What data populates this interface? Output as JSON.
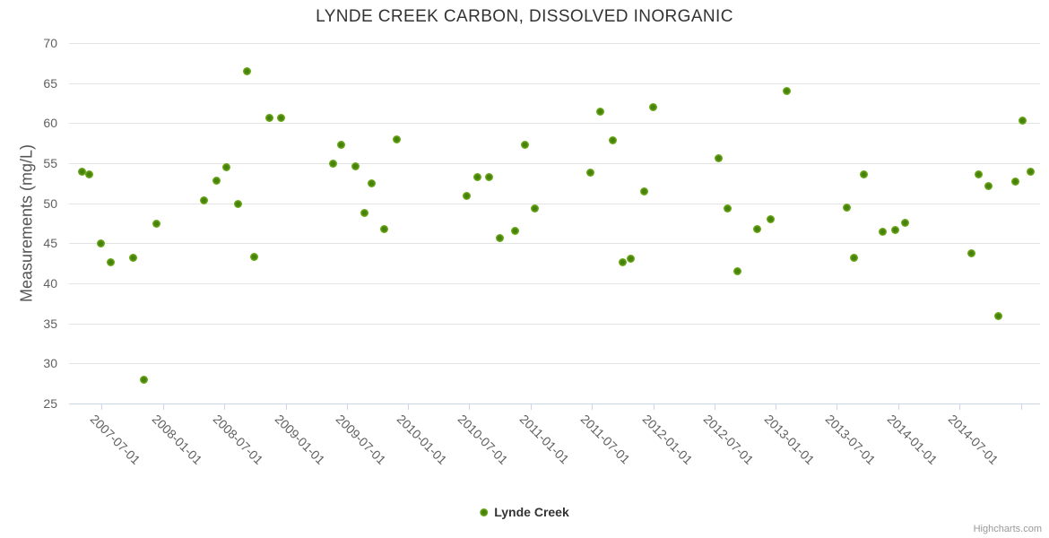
{
  "chart": {
    "title": "LYNDE CREEK CARBON, DISSOLVED INORGANIC",
    "y_axis": {
      "title": "Measurements (mg/L)",
      "min": 25,
      "max": 70,
      "tick_interval": 5,
      "tick_labels": [
        "25",
        "30",
        "35",
        "40",
        "45",
        "50",
        "55",
        "60",
        "65",
        "70"
      ]
    },
    "x_axis": {
      "tick_labels": [
        "2007-07-01",
        "2008-01-01",
        "2008-07-01",
        "2009-01-01",
        "2009-07-01",
        "2010-01-01",
        "2010-07-01",
        "2011-01-01",
        "2011-07-01",
        "2012-01-01",
        "2012-07-01",
        "2013-01-01",
        "2013-07-01",
        "2014-01-01",
        "2014-07-01"
      ],
      "extra_unlabeled_tick": "2015-01-01"
    },
    "legend": {
      "label": "Lynde Creek"
    },
    "credits": "Highcharts.com",
    "colors": {
      "marker_core": "#47800a",
      "marker_mid": "#69a818",
      "marker_edge": "#8cc03f",
      "gridline": "#e3e3e3",
      "axis": "#ccd6eb",
      "label": "#606060",
      "title": "#333333"
    }
  },
  "chart_data": {
    "type": "scatter",
    "title": "LYNDE CREEK CARBON, DISSOLVED INORGANIC",
    "xlabel": "",
    "ylabel": "Measurements (mg/L)",
    "ylim": [
      25,
      70
    ],
    "grid": "horizontal-only",
    "legend_position": "bottom-center",
    "series": [
      {
        "name": "Lynde Creek",
        "points": [
          [
            "2007-05-05",
            53.9
          ],
          [
            "2007-05-27",
            53.6
          ],
          [
            "2007-06-30",
            45.0
          ],
          [
            "2007-07-29",
            42.6
          ],
          [
            "2007-10-03",
            43.2
          ],
          [
            "2007-11-04",
            28.0
          ],
          [
            "2007-12-12",
            47.4
          ],
          [
            "2008-05-02",
            50.3
          ],
          [
            "2008-06-09",
            52.8
          ],
          [
            "2008-07-08",
            54.5
          ],
          [
            "2008-08-12",
            49.9
          ],
          [
            "2008-09-06",
            66.5
          ],
          [
            "2008-09-30",
            43.3
          ],
          [
            "2008-11-14",
            60.6
          ],
          [
            "2008-12-19",
            60.6
          ],
          [
            "2009-05-23",
            54.9
          ],
          [
            "2009-06-16",
            57.3
          ],
          [
            "2009-07-28",
            54.6
          ],
          [
            "2009-08-24",
            48.8
          ],
          [
            "2009-09-15",
            52.5
          ],
          [
            "2009-10-21",
            46.8
          ],
          [
            "2009-11-28",
            58.0
          ],
          [
            "2010-06-24",
            50.9
          ],
          [
            "2010-07-27",
            53.3
          ],
          [
            "2010-08-30",
            53.3
          ],
          [
            "2010-10-01",
            45.6
          ],
          [
            "2010-11-15",
            46.5
          ],
          [
            "2010-12-15",
            57.3
          ],
          [
            "2011-01-12",
            49.4
          ],
          [
            "2011-06-27",
            53.8
          ],
          [
            "2011-07-28",
            61.4
          ],
          [
            "2011-09-02",
            57.9
          ],
          [
            "2011-10-01",
            42.6
          ],
          [
            "2011-10-26",
            43.1
          ],
          [
            "2011-12-04",
            51.5
          ],
          [
            "2012-01-01",
            62.0
          ],
          [
            "2012-07-13",
            55.6
          ],
          [
            "2012-08-11",
            49.3
          ],
          [
            "2012-09-09",
            41.5
          ],
          [
            "2012-11-05",
            46.8
          ],
          [
            "2012-12-17",
            48.0
          ],
          [
            "2013-02-01",
            64.0
          ],
          [
            "2013-07-30",
            49.5
          ],
          [
            "2013-08-21",
            43.2
          ],
          [
            "2013-09-20",
            53.6
          ],
          [
            "2013-11-16",
            46.4
          ],
          [
            "2013-12-23",
            46.7
          ],
          [
            "2014-01-20",
            47.6
          ],
          [
            "2014-08-06",
            43.7
          ],
          [
            "2014-08-28",
            53.6
          ],
          [
            "2014-09-27",
            52.1
          ],
          [
            "2014-10-26",
            35.9
          ],
          [
            "2014-12-15",
            52.7
          ],
          [
            "2015-01-05",
            60.3
          ],
          [
            "2015-01-29",
            53.9
          ]
        ]
      }
    ]
  }
}
